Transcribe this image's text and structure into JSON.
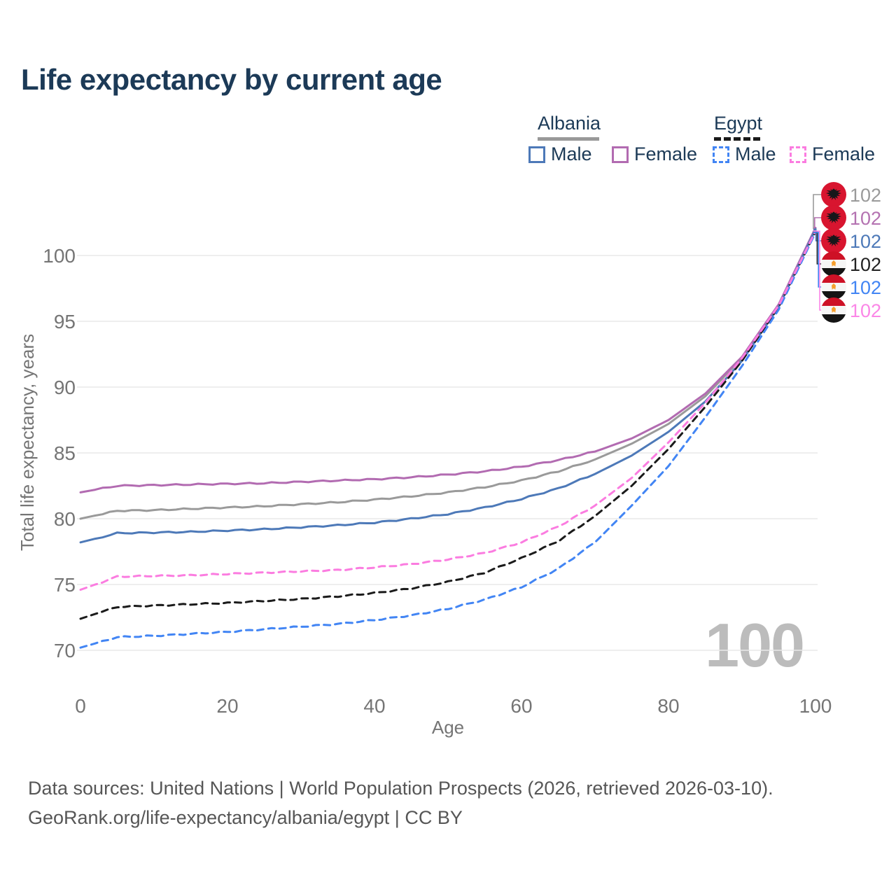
{
  "title": "Life expectancy by current age",
  "watermark": "100",
  "legend": {
    "groups": [
      {
        "country": "Albania",
        "line_style": "solid",
        "underline_color": "#999999",
        "items": [
          {
            "label": "Male",
            "color": "#4d79b8",
            "dashed": false
          },
          {
            "label": "Female",
            "color": "#b26bb1",
            "dashed": false
          }
        ]
      },
      {
        "country": "Egypt",
        "line_style": "dashed",
        "underline_color": "#1a1a1a",
        "items": [
          {
            "label": "Male",
            "color": "#4285f4",
            "dashed": true
          },
          {
            "label": "Female",
            "color": "#fb7ce0",
            "dashed": true
          }
        ]
      }
    ]
  },
  "y_axis": {
    "label": "Total life expectancy, years",
    "ticks": [
      70,
      75,
      80,
      85,
      90,
      95,
      100
    ]
  },
  "x_axis": {
    "label": "Age",
    "ticks": [
      0,
      20,
      40,
      60,
      80,
      100
    ]
  },
  "end_labels": [
    {
      "flag": "albania",
      "value": "102",
      "color": "#9a9a9a"
    },
    {
      "flag": "albania",
      "value": "102",
      "color": "#b472b1"
    },
    {
      "flag": "albania",
      "value": "102",
      "color": "#4d79b8"
    },
    {
      "flag": "egypt",
      "value": "102",
      "color": "#222222"
    },
    {
      "flag": "egypt",
      "value": "102",
      "color": "#4285f4"
    },
    {
      "flag": "egypt",
      "value": "102",
      "color": "#fb87e7"
    }
  ],
  "footer": {
    "line1": "Data sources: United Nations | World Population Prospects (2026, retrieved 2026-03-10).",
    "line2": "GeoRank.org/life-expectancy/albania/egypt | CC BY"
  },
  "chart_data": {
    "type": "line",
    "xlabel": "Age",
    "ylabel": "Total life expectancy, years",
    "xlim": [
      0,
      100
    ],
    "ylim": [
      67,
      103
    ],
    "grid": true,
    "x": [
      0,
      5,
      10,
      15,
      20,
      25,
      30,
      35,
      40,
      45,
      50,
      55,
      60,
      65,
      70,
      75,
      80,
      85,
      90,
      95,
      100
    ],
    "series": [
      {
        "name": "Albania",
        "color": "#9a9a9a",
        "dash": false,
        "values": [
          80.0,
          80.6,
          80.65,
          80.75,
          80.85,
          80.95,
          81.1,
          81.25,
          81.45,
          81.7,
          82.0,
          82.4,
          82.9,
          83.6,
          84.5,
          85.7,
          87.2,
          89.3,
          92.2,
          96.2,
          102.0
        ]
      },
      {
        "name": "Albania Female",
        "color": "#b26bb1",
        "dash": false,
        "values": [
          82.0,
          82.5,
          82.55,
          82.6,
          82.65,
          82.7,
          82.8,
          82.9,
          83.0,
          83.15,
          83.35,
          83.6,
          83.95,
          84.45,
          85.1,
          86.1,
          87.5,
          89.5,
          92.3,
          96.3,
          102.1
        ]
      },
      {
        "name": "Albania Male",
        "color": "#4d79b8",
        "dash": false,
        "values": [
          78.2,
          78.9,
          78.95,
          79.0,
          79.1,
          79.2,
          79.35,
          79.5,
          79.7,
          80.0,
          80.35,
          80.85,
          81.5,
          82.3,
          83.4,
          84.8,
          86.6,
          88.9,
          92.0,
          96.1,
          102.0
        ]
      },
      {
        "name": "Egypt",
        "color": "#1b1b1b",
        "dash": true,
        "values": [
          72.4,
          73.3,
          73.4,
          73.5,
          73.6,
          73.75,
          73.9,
          74.1,
          74.35,
          74.7,
          75.2,
          75.9,
          77.0,
          78.3,
          80.2,
          82.5,
          85.3,
          88.5,
          92.0,
          96.1,
          101.8
        ]
      },
      {
        "name": "Egypt Male",
        "color": "#4285f4",
        "dash": true,
        "values": [
          70.2,
          71.0,
          71.1,
          71.25,
          71.4,
          71.6,
          71.8,
          72.0,
          72.3,
          72.65,
          73.15,
          73.85,
          74.8,
          76.2,
          78.2,
          81.0,
          84.0,
          87.7,
          91.6,
          95.9,
          101.75
        ]
      },
      {
        "name": "Egypt Female",
        "color": "#fb7ce0",
        "dash": true,
        "values": [
          74.6,
          75.6,
          75.65,
          75.7,
          75.8,
          75.9,
          76.0,
          76.1,
          76.3,
          76.55,
          76.9,
          77.4,
          78.2,
          79.4,
          81.0,
          83.1,
          85.8,
          88.8,
          92.2,
          96.2,
          101.85
        ]
      }
    ]
  }
}
